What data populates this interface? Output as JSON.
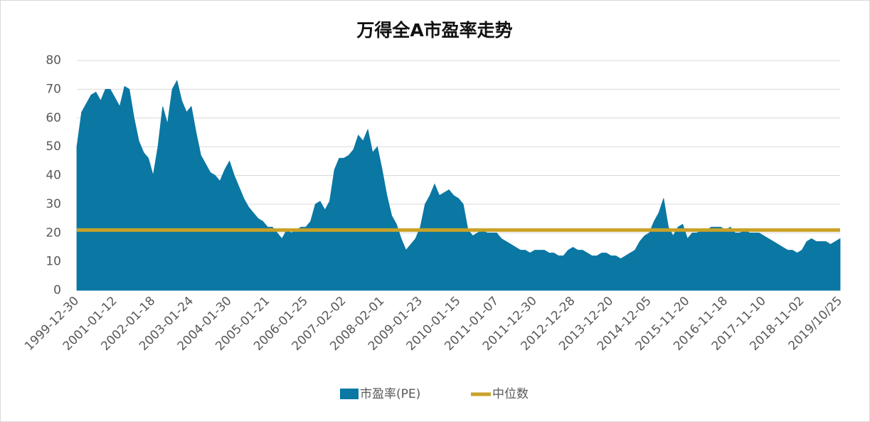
{
  "chart_data": {
    "type": "area",
    "title": "万得全A市盈率走势",
    "categories": [
      "1999-12-30",
      null,
      null,
      null,
      null,
      null,
      null,
      null,
      "2001-01-12",
      null,
      null,
      null,
      null,
      null,
      null,
      null,
      "2002-01-18",
      null,
      null,
      null,
      null,
      null,
      null,
      null,
      "2003-01-24",
      null,
      null,
      null,
      null,
      null,
      null,
      null,
      "2004-01-30",
      null,
      null,
      null,
      null,
      null,
      null,
      null,
      "2005-01-21",
      null,
      null,
      null,
      null,
      null,
      null,
      null,
      "2006-01-25",
      null,
      null,
      null,
      null,
      null,
      null,
      null,
      "2007-02-02",
      null,
      null,
      null,
      null,
      null,
      null,
      null,
      "2008-02-01",
      null,
      null,
      null,
      null,
      null,
      null,
      null,
      "2009-01-23",
      null,
      null,
      null,
      null,
      null,
      null,
      null,
      "2010-01-15",
      null,
      null,
      null,
      null,
      null,
      null,
      null,
      "2011-01-07",
      null,
      null,
      null,
      null,
      null,
      null,
      null,
      "2011-12-30",
      null,
      null,
      null,
      null,
      null,
      null,
      null,
      "2012-12-28",
      null,
      null,
      null,
      null,
      null,
      null,
      null,
      "2013-12-20",
      null,
      null,
      null,
      null,
      null,
      null,
      null,
      "2014-12-05",
      null,
      null,
      null,
      null,
      null,
      null,
      null,
      "2015-11-20",
      null,
      null,
      null,
      null,
      null,
      null,
      null,
      "2016-11-18",
      null,
      null,
      null,
      null,
      null,
      null,
      null,
      "2017-11-10",
      null,
      null,
      null,
      null,
      null,
      null,
      null,
      "2018-11-02",
      null,
      null,
      null,
      null,
      null,
      null,
      null,
      "2019/10/25"
    ],
    "series": [
      {
        "name": "市盈率(PE)",
        "color": "#0b77a3",
        "values": [
          50,
          62,
          65,
          68,
          69,
          66,
          70,
          70,
          67,
          64,
          71,
          70,
          60,
          52,
          48,
          46,
          40,
          50,
          64,
          58,
          70,
          73,
          66,
          62,
          64,
          55,
          47,
          44,
          41,
          40,
          38,
          42,
          45,
          40,
          36,
          32,
          29,
          27,
          25,
          24,
          22,
          22,
          20,
          18,
          21,
          20,
          21,
          22,
          22,
          24,
          30,
          31,
          28,
          31,
          42,
          46,
          46,
          47,
          49,
          54,
          52,
          56,
          48,
          50,
          42,
          33,
          26,
          23,
          18,
          14,
          16,
          18,
          22,
          30,
          33,
          37,
          33,
          34,
          35,
          33,
          32,
          30,
          21,
          19,
          20,
          21,
          20,
          20,
          20,
          18,
          17,
          16,
          15,
          14,
          14,
          13,
          14,
          14,
          14,
          13,
          13,
          12,
          12,
          14,
          15,
          14,
          14,
          13,
          12,
          12,
          13,
          13,
          12,
          12,
          11,
          12,
          13,
          14,
          17,
          19,
          20,
          24,
          27,
          32,
          22,
          19,
          22,
          23,
          18,
          20,
          20,
          21,
          21,
          22,
          22,
          22,
          21,
          22,
          20,
          20,
          21,
          20,
          20,
          20,
          19,
          18,
          17,
          16,
          15,
          14,
          14,
          13,
          14,
          17,
          18,
          17,
          17,
          17,
          16,
          17,
          18
        ]
      }
    ],
    "median_line": {
      "name": "中位数",
      "value": 21,
      "color": "#c9a227"
    },
    "ylim": [
      0,
      80
    ],
    "yticks": [
      0,
      10,
      20,
      30,
      40,
      50,
      60,
      70,
      80
    ],
    "grid": true
  }
}
